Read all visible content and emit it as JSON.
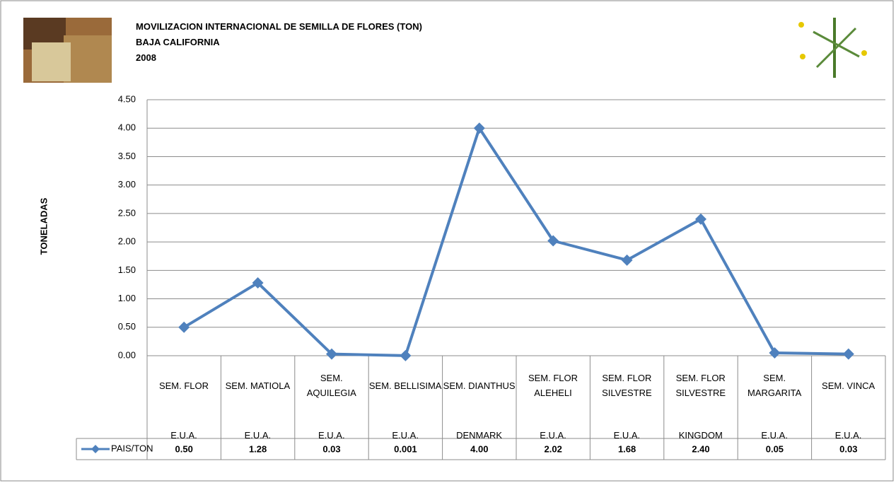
{
  "chart_data": {
    "type": "line",
    "title_lines": [
      "MOVILIZACION INTERNACIONAL DE SEMILLA DE FLORES (TON)",
      "BAJA CALIFORNIA",
      "2008"
    ],
    "y_label": "TONELADAS",
    "categories": [
      "SEM. FLOR",
      "SEM. MATIOLA",
      "SEM. AQUILEGIA",
      "SEM. BELLISIMA",
      "SEM. DIANTHUS",
      "SEM. FLOR ALEHELI",
      "SEM. FLOR SILVESTRE",
      "SEM. FLOR SILVESTRE",
      "SEM. MARGARITA",
      "SEM. VINCA"
    ],
    "countries": [
      "E.U.A.",
      "E.U.A.",
      "E.U.A.",
      "E.U.A.",
      "DENMARK",
      "E.U.A.",
      "E.U.A.",
      "KINGDOM",
      "E.U.A.",
      "E.U.A."
    ],
    "series": [
      {
        "name": "PAIS/TON",
        "color": "#4f81bd",
        "values": [
          0.5,
          1.28,
          0.03,
          0.001,
          4.0,
          2.02,
          1.68,
          2.4,
          0.05,
          0.03
        ],
        "value_labels": [
          "0.50",
          "1.28",
          "0.03",
          "0.001",
          "4.00",
          "2.02",
          "1.68",
          "2.40",
          "0.05",
          "0.03"
        ]
      }
    ],
    "ylim": [
      0,
      4.5
    ],
    "yticks": [
      {
        "value": 0,
        "label": "0.00"
      },
      {
        "value": 0.5,
        "label": "0.50"
      },
      {
        "value": 1,
        "label": "1.00"
      },
      {
        "value": 1.5,
        "label": "1.50"
      },
      {
        "value": 2,
        "label": "2.00"
      },
      {
        "value": 2.5,
        "label": "2.50"
      },
      {
        "value": 3,
        "label": "3.00"
      },
      {
        "value": 3.5,
        "label": "3.50"
      },
      {
        "value": 4,
        "label": "4.00"
      },
      {
        "value": 4.5,
        "label": "4.50"
      }
    ],
    "grid": true
  }
}
